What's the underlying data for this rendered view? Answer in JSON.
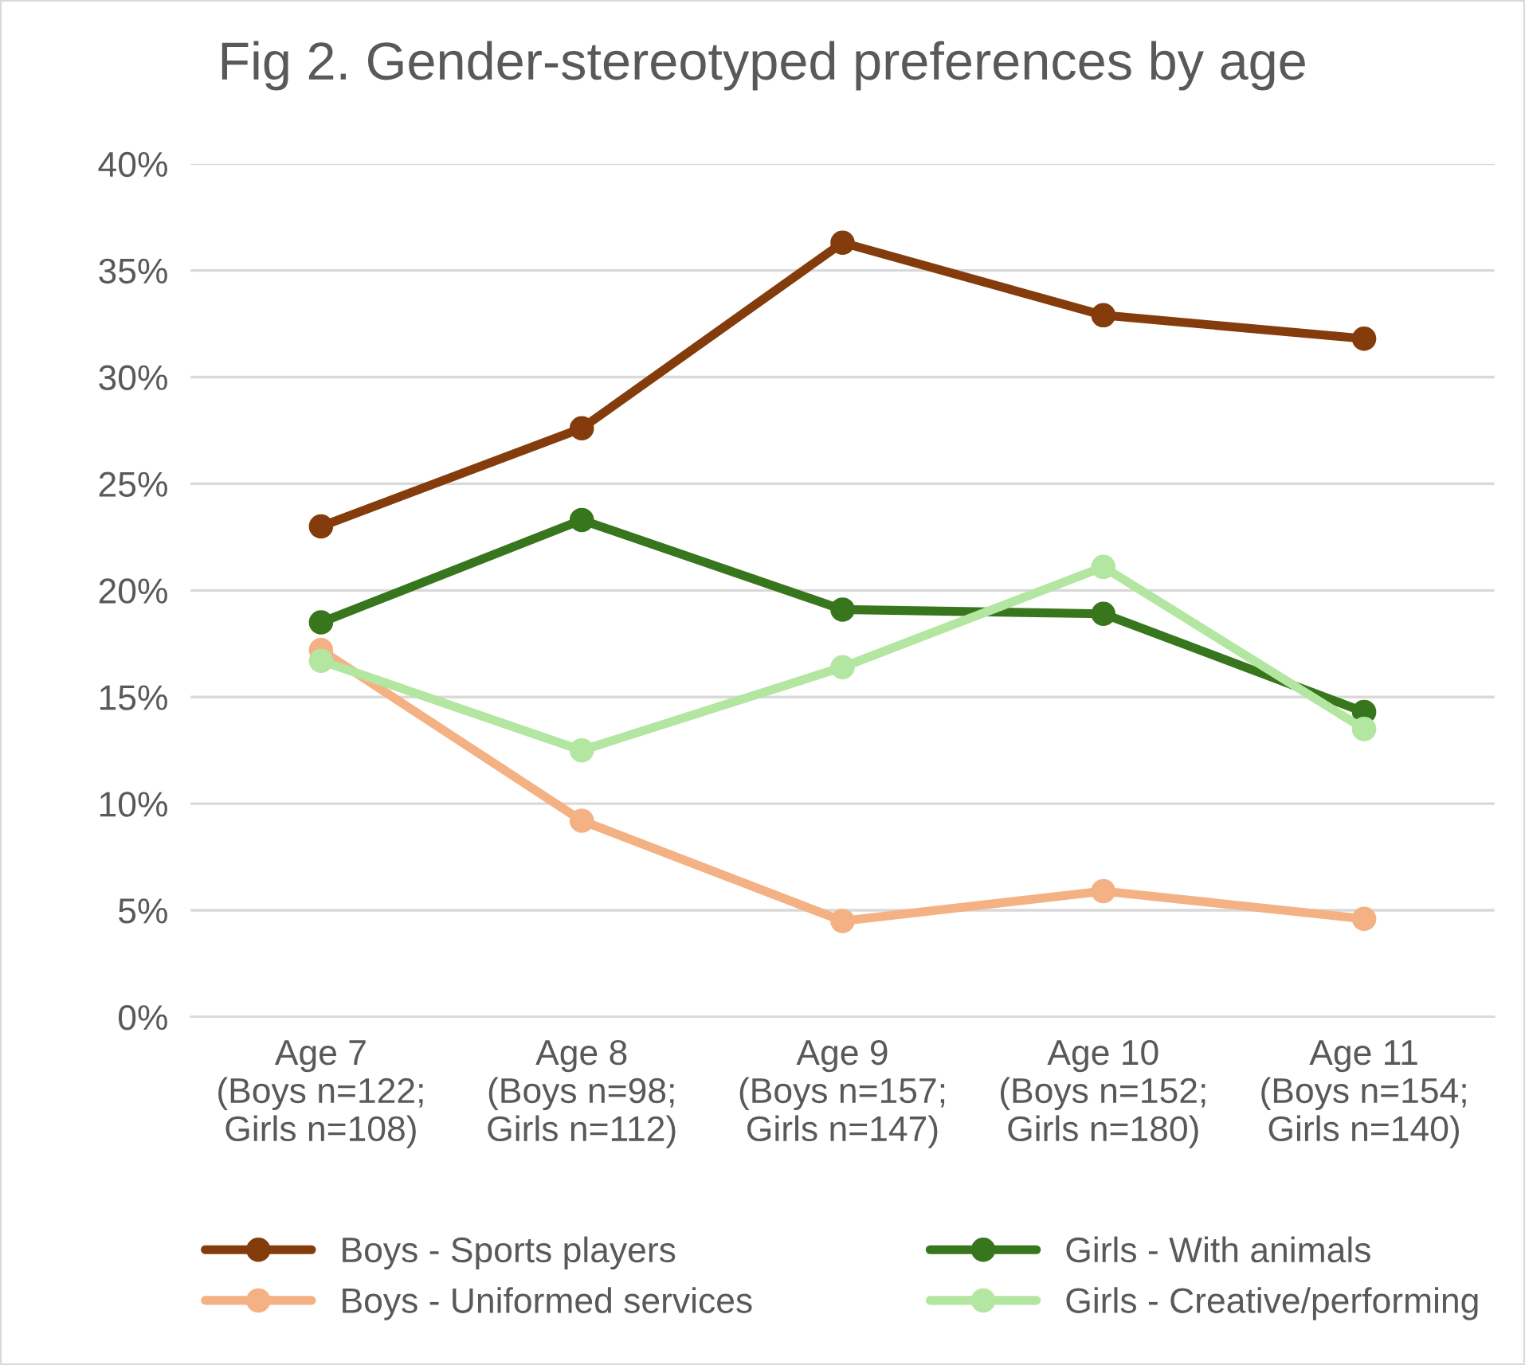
{
  "chart_data": {
    "type": "line",
    "title": "Fig 2. Gender-stereotyped preferences by age",
    "categories": [
      "Age 7\n(Boys n=122;\nGirls n=108)",
      "Age 8\n(Boys n=98;\nGirls n=112)",
      "Age 9\n(Boys n=157;\nGirls n=147)",
      "Age 10\n(Boys n=152;\nGirls n=180)",
      "Age 11\n(Boys n=154;\nGirls n=140)"
    ],
    "series": [
      {
        "name": "Boys - Sports players",
        "color": "#843c0c",
        "values": [
          23.0,
          27.6,
          36.3,
          32.9,
          31.8
        ]
      },
      {
        "name": "Boys - Uniformed services",
        "color": "#f4b183",
        "values": [
          17.2,
          9.2,
          4.5,
          5.9,
          4.6
        ]
      },
      {
        "name": "Girls - With animals",
        "color": "#38761d",
        "values": [
          18.5,
          23.3,
          19.1,
          18.9,
          14.3
        ]
      },
      {
        "name": "Girls - Creative/performing",
        "color": "#b3e6a0",
        "values": [
          16.7,
          12.5,
          16.4,
          21.1,
          13.5
        ]
      }
    ],
    "ylim": [
      0,
      40
    ],
    "yticks": [
      {
        "value": 0,
        "label": "0%"
      },
      {
        "value": 5,
        "label": "5%"
      },
      {
        "value": 10,
        "label": "10%"
      },
      {
        "value": 15,
        "label": "15%"
      },
      {
        "value": 20,
        "label": "20%"
      },
      {
        "value": 25,
        "label": "25%"
      },
      {
        "value": 30,
        "label": "30%"
      },
      {
        "value": 35,
        "label": "35%"
      },
      {
        "value": 40,
        "label": "40%"
      }
    ],
    "grid": "y",
    "legend": "bottom",
    "marker": "circle",
    "line_style": "solid"
  }
}
